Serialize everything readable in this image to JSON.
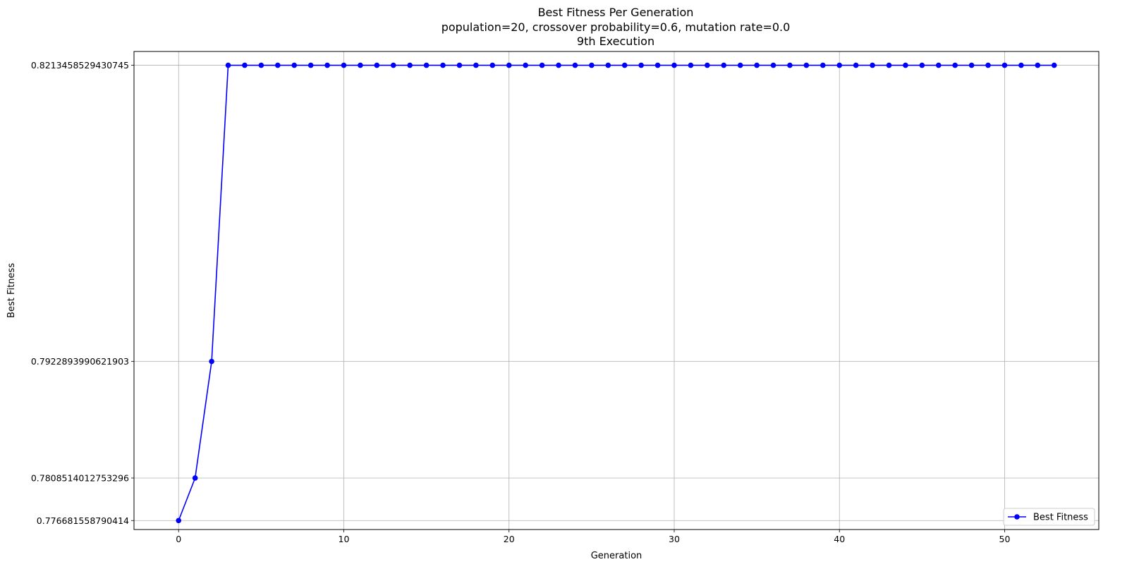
{
  "chart_data": {
    "type": "line",
    "title_lines": [
      "Best Fitness Per Generation",
      "population=20, crossover probability=0.6, mutation rate=0.0",
      "9th Execution"
    ],
    "xlabel": "Generation",
    "ylabel": "Best Fitness",
    "xlim": [
      -2.7,
      55.7
    ],
    "ylim": [
      0.7758,
      0.8227
    ],
    "x_ticks": [
      0,
      10,
      20,
      30,
      40,
      50
    ],
    "x_tick_labels": [
      "0",
      "10",
      "20",
      "30",
      "40",
      "50"
    ],
    "y_ticks": [
      0.776681558790414,
      0.7808514012753296,
      0.7922893990621903,
      0.8213458529430745
    ],
    "y_tick_labels": [
      "0.776681558790414",
      "0.7808514012753296",
      "0.7922893990621903",
      "0.8213458529430745"
    ],
    "grid": true,
    "legend_position": "lower-right",
    "series": [
      {
        "name": "Best Fitness",
        "color": "#0000ff",
        "marker": "circle",
        "x": [
          0,
          1,
          2,
          3,
          4,
          5,
          6,
          7,
          8,
          9,
          10,
          11,
          12,
          13,
          14,
          15,
          16,
          17,
          18,
          19,
          20,
          21,
          22,
          23,
          24,
          25,
          26,
          27,
          28,
          29,
          30,
          31,
          32,
          33,
          34,
          35,
          36,
          37,
          38,
          39,
          40,
          41,
          42,
          43,
          44,
          45,
          46,
          47,
          48,
          49,
          50,
          51,
          52,
          53
        ],
        "y": [
          0.776681558790414,
          0.7808514012753296,
          0.7922893990621903,
          0.8213458529430745,
          0.8213458529430745,
          0.8213458529430745,
          0.8213458529430745,
          0.8213458529430745,
          0.8213458529430745,
          0.8213458529430745,
          0.8213458529430745,
          0.8213458529430745,
          0.8213458529430745,
          0.8213458529430745,
          0.8213458529430745,
          0.8213458529430745,
          0.8213458529430745,
          0.8213458529430745,
          0.8213458529430745,
          0.8213458529430745,
          0.8213458529430745,
          0.8213458529430745,
          0.8213458529430745,
          0.8213458529430745,
          0.8213458529430745,
          0.8213458529430745,
          0.8213458529430745,
          0.8213458529430745,
          0.8213458529430745,
          0.8213458529430745,
          0.8213458529430745,
          0.8213458529430745,
          0.8213458529430745,
          0.8213458529430745,
          0.8213458529430745,
          0.8213458529430745,
          0.8213458529430745,
          0.8213458529430745,
          0.8213458529430745,
          0.8213458529430745,
          0.8213458529430745,
          0.8213458529430745,
          0.8213458529430745,
          0.8213458529430745,
          0.8213458529430745,
          0.8213458529430745,
          0.8213458529430745,
          0.8213458529430745,
          0.8213458529430745,
          0.8213458529430745,
          0.8213458529430745,
          0.8213458529430745,
          0.8213458529430745,
          0.8213458529430745
        ]
      }
    ]
  }
}
